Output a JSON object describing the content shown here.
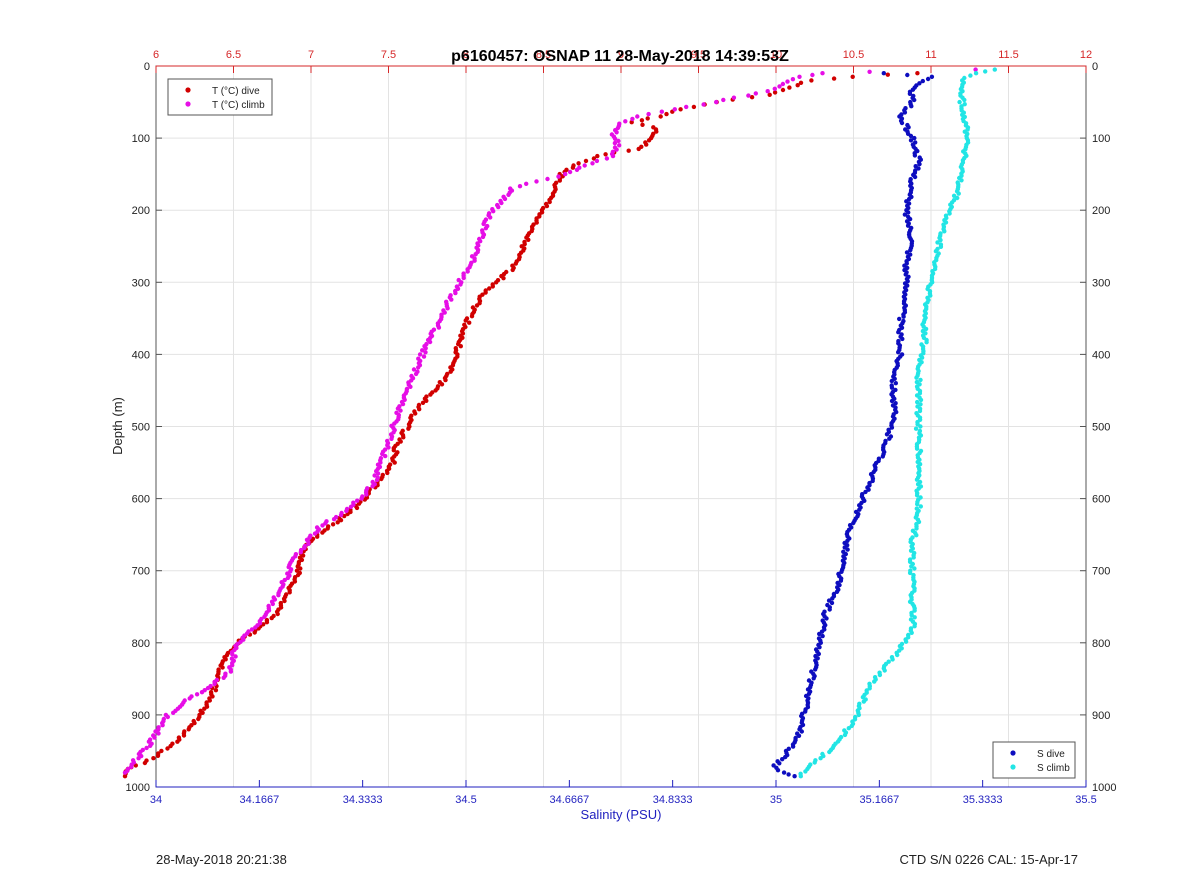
{
  "footer": {
    "timestamp": "28-May-2018 20:21:38",
    "instrument": "CTD S/N 0226  CAL: 15-Apr-17"
  },
  "chart_data": {
    "type": "scatter",
    "title": "p6160457: OSNAP 11 28-May-2018 14:39:53Z",
    "ylabel": "Depth (m)",
    "xlabel": "Salinity (PSU)",
    "y_reversed": true,
    "ylim": [
      1000,
      0
    ],
    "y_ticks": [
      0,
      100,
      200,
      300,
      400,
      500,
      600,
      700,
      800,
      900,
      1000
    ],
    "grid": true,
    "axes": {
      "temperature_x": {
        "position": "top",
        "range": [
          6,
          12
        ],
        "ticks": [
          "6",
          "6.5",
          "7",
          "7.5",
          "8",
          "8.5",
          "9",
          "9.5",
          "10",
          "10.5",
          "11",
          "11.5",
          "12"
        ],
        "color": "#d62728"
      },
      "salinity_x": {
        "position": "bottom",
        "range": [
          34,
          35.5
        ],
        "ticks": [
          "34",
          "34.1667",
          "34.3333",
          "34.5",
          "34.6667",
          "34.8333",
          "35",
          "35.1667",
          "35.3333",
          "35.5"
        ],
        "color": "#1f1fbf"
      }
    },
    "legends": [
      {
        "placement": "top-left",
        "entries": [
          "T (°C) dive",
          "T (°C) climb"
        ]
      },
      {
        "placement": "bottom-right",
        "entries": [
          "S dive",
          "S climb"
        ]
      }
    ],
    "series": [
      {
        "name": "T (°C) dive",
        "axis": "temperature_x",
        "color": "#d10000",
        "points": [
          [
            10.92,
            10
          ],
          [
            10.72,
            12
          ],
          [
            10.5,
            15
          ],
          [
            10.22,
            20
          ],
          [
            10.08,
            30
          ],
          [
            9.95,
            40
          ],
          [
            9.62,
            50
          ],
          [
            9.4,
            60
          ],
          [
            9.24,
            70
          ],
          [
            9.06,
            78
          ],
          [
            9.22,
            85
          ],
          [
            9.2,
            100
          ],
          [
            9.12,
            115
          ],
          [
            8.95,
            120
          ],
          [
            8.86,
            125
          ],
          [
            8.72,
            135
          ],
          [
            8.62,
            150
          ],
          [
            8.58,
            165
          ],
          [
            8.55,
            180
          ],
          [
            8.5,
            200
          ],
          [
            8.43,
            220
          ],
          [
            8.37,
            250
          ],
          [
            8.3,
            280
          ],
          [
            8.2,
            300
          ],
          [
            8.1,
            320
          ],
          [
            8.02,
            350
          ],
          [
            7.96,
            380
          ],
          [
            7.94,
            400
          ],
          [
            7.88,
            430
          ],
          [
            7.8,
            450
          ],
          [
            7.7,
            470
          ],
          [
            7.62,
            500
          ],
          [
            7.55,
            530
          ],
          [
            7.53,
            550
          ],
          [
            7.46,
            570
          ],
          [
            7.38,
            590
          ],
          [
            7.3,
            610
          ],
          [
            7.18,
            630
          ],
          [
            7.04,
            650
          ],
          [
            6.95,
            670
          ],
          [
            6.92,
            700
          ],
          [
            6.85,
            730
          ],
          [
            6.78,
            760
          ],
          [
            6.66,
            780
          ],
          [
            6.53,
            800
          ],
          [
            6.45,
            820
          ],
          [
            6.4,
            840
          ],
          [
            6.38,
            860
          ],
          [
            6.35,
            880
          ],
          [
            6.28,
            900
          ],
          [
            6.2,
            920
          ],
          [
            6.12,
            940
          ],
          [
            6.05,
            950
          ],
          [
            5.98,
            960
          ],
          [
            5.88,
            970
          ],
          [
            5.82,
            975
          ],
          [
            5.8,
            985
          ]
        ]
      },
      {
        "name": "T (°C) climb",
        "axis": "temperature_x",
        "color": "#e60ee6",
        "points": [
          [
            11.3,
            5
          ],
          [
            10.6,
            8
          ],
          [
            10.3,
            10
          ],
          [
            10.15,
            15
          ],
          [
            10.05,
            25
          ],
          [
            9.95,
            35
          ],
          [
            9.6,
            50
          ],
          [
            9.35,
            60
          ],
          [
            9.1,
            70
          ],
          [
            9.0,
            80
          ],
          [
            8.95,
            95
          ],
          [
            8.98,
            110
          ],
          [
            8.95,
            125
          ],
          [
            8.8,
            135
          ],
          [
            8.65,
            150
          ],
          [
            8.45,
            160
          ],
          [
            8.3,
            170
          ],
          [
            8.22,
            190
          ],
          [
            8.14,
            210
          ],
          [
            8.1,
            240
          ],
          [
            8.04,
            270
          ],
          [
            7.96,
            300
          ],
          [
            7.88,
            330
          ],
          [
            7.82,
            360
          ],
          [
            7.76,
            380
          ],
          [
            7.72,
            400
          ],
          [
            7.66,
            430
          ],
          [
            7.6,
            460
          ],
          [
            7.55,
            490
          ],
          [
            7.5,
            520
          ],
          [
            7.45,
            550
          ],
          [
            7.4,
            580
          ],
          [
            7.32,
            600
          ],
          [
            7.2,
            620
          ],
          [
            7.05,
            640
          ],
          [
            6.98,
            660
          ],
          [
            6.9,
            680
          ],
          [
            6.84,
            710
          ],
          [
            6.76,
            740
          ],
          [
            6.68,
            770
          ],
          [
            6.58,
            790
          ],
          [
            6.5,
            810
          ],
          [
            6.5,
            825
          ],
          [
            6.48,
            840
          ],
          [
            6.35,
            860
          ],
          [
            6.2,
            880
          ],
          [
            6.08,
            900
          ],
          [
            6.02,
            920
          ],
          [
            5.96,
            940
          ],
          [
            5.88,
            960
          ],
          [
            5.82,
            975
          ],
          [
            5.8,
            980
          ]
        ]
      },
      {
        "name": "S dive",
        "axis": "salinity_x",
        "color": "#0d0dbf",
        "points": [
          [
            35.17,
            10
          ],
          [
            35.25,
            15
          ],
          [
            35.22,
            30
          ],
          [
            35.22,
            50
          ],
          [
            35.2,
            70
          ],
          [
            35.22,
            100
          ],
          [
            35.23,
            130
          ],
          [
            35.22,
            160
          ],
          [
            35.21,
            200
          ],
          [
            35.22,
            240
          ],
          [
            35.21,
            280
          ],
          [
            35.21,
            320
          ],
          [
            35.2,
            360
          ],
          [
            35.2,
            400
          ],
          [
            35.19,
            440
          ],
          [
            35.19,
            480
          ],
          [
            35.18,
            520
          ],
          [
            35.16,
            560
          ],
          [
            35.14,
            600
          ],
          [
            35.12,
            640
          ],
          [
            35.11,
            680
          ],
          [
            35.1,
            720
          ],
          [
            35.08,
            760
          ],
          [
            35.07,
            800
          ],
          [
            35.06,
            840
          ],
          [
            35.05,
            880
          ],
          [
            35.04,
            920
          ],
          [
            35.02,
            950
          ],
          [
            35.0,
            970
          ],
          [
            35.01,
            980
          ],
          [
            35.03,
            985
          ]
        ]
      },
      {
        "name": "S climb",
        "axis": "salinity_x",
        "color": "#22e5e5",
        "points": [
          [
            35.35,
            5
          ],
          [
            35.32,
            10
          ],
          [
            35.3,
            20
          ],
          [
            35.3,
            50
          ],
          [
            35.31,
            100
          ],
          [
            35.3,
            140
          ],
          [
            35.29,
            180
          ],
          [
            35.27,
            220
          ],
          [
            35.26,
            260
          ],
          [
            35.25,
            300
          ],
          [
            35.24,
            340
          ],
          [
            35.24,
            380
          ],
          [
            35.23,
            420
          ],
          [
            35.23,
            460
          ],
          [
            35.23,
            500
          ],
          [
            35.23,
            540
          ],
          [
            35.23,
            580
          ],
          [
            35.23,
            620
          ],
          [
            35.22,
            660
          ],
          [
            35.22,
            700
          ],
          [
            35.22,
            740
          ],
          [
            35.22,
            780
          ],
          [
            35.19,
            820
          ],
          [
            35.15,
            860
          ],
          [
            35.13,
            900
          ],
          [
            35.1,
            940
          ],
          [
            35.07,
            960
          ],
          [
            35.05,
            975
          ],
          [
            35.04,
            985
          ]
        ]
      }
    ]
  }
}
